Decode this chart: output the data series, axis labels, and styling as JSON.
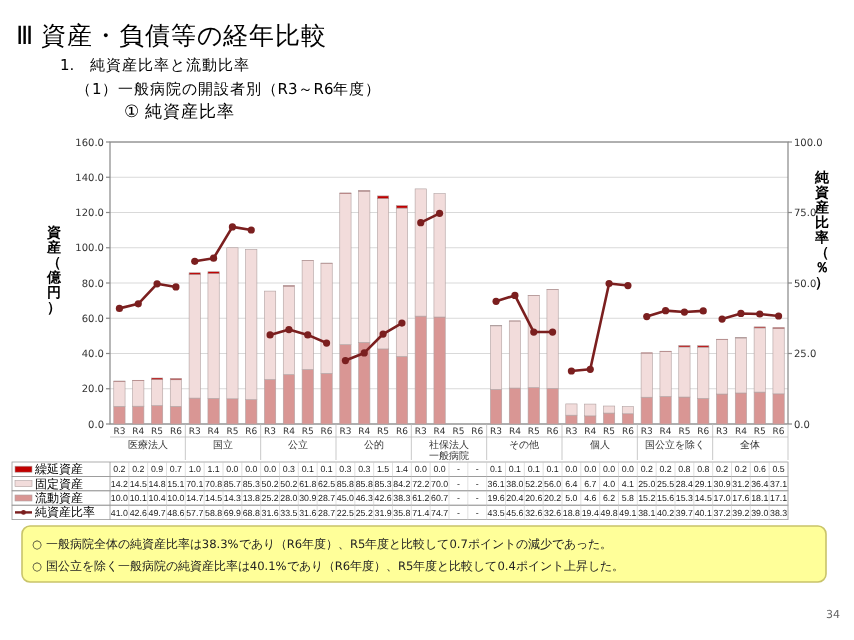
{
  "chart_data": {
    "type": "bar",
    "title": "Ⅲ 資産・負債等の経年比較",
    "subtitle": "1.　純資産比率と流動比率",
    "ylabel": "資産（億円）",
    "y2label": "純資産比率（％）",
    "annotations": [
      "（1）一般病院の開設者別（R3～R6年度）",
      "① 純資産比率",
      "医療法人",
      "国立",
      "公立",
      "公的",
      "社保法人",
      "その他",
      "個人",
      "国公立を除く",
      "全体",
      "一般病院",
      "○ 一般病院全体の純資産比率は38.3%であり（R6年度）、R5年度と比較して0.7ポイントの減少であった。",
      "○ 国公立を除く一般病院の純資産比率は40.1%であり（R6年度）、R5年度と比較して0.4ポイント上昇した。",
      "34"
    ],
    "categories": [
      "R3",
      "R4",
      "R5",
      "R6",
      "R3",
      "R4",
      "R5",
      "R6",
      "R3",
      "R4",
      "R5",
      "R6",
      "R3",
      "R4",
      "R5",
      "R6",
      "R3",
      "R4",
      "R5",
      "R6",
      "R3",
      "R4",
      "R5",
      "R6",
      "R3",
      "R4",
      "R5",
      "R6",
      "R3",
      "R4",
      "R5",
      "R6",
      "R3",
      "R4",
      "R5",
      "R6"
    ],
    "stacked": true,
    "grid": "y",
    "legend": "bottom left",
    "marker": "circle",
    "ylim": [
      0,
      160
    ],
    "yticks": [
      {
        "value": 0,
        "label": "0.0"
      },
      {
        "value": 20,
        "label": "20.0"
      },
      {
        "value": 40,
        "label": "40.0"
      },
      {
        "value": 60,
        "label": "60.0"
      },
      {
        "value": 80,
        "label": "80.0"
      },
      {
        "value": 100,
        "label": "100.0"
      },
      {
        "value": 120,
        "label": "120.0"
      },
      {
        "value": 140,
        "label": "140.0"
      },
      {
        "value": 160,
        "label": "160.0"
      }
    ],
    "y2lim": [
      0,
      100
    ],
    "y2ticks": [
      {
        "value": 0,
        "label": "0.0"
      },
      {
        "value": 25,
        "label": "25.0"
      },
      {
        "value": 50,
        "label": "50.0"
      },
      {
        "value": 75,
        "label": "75.0"
      },
      {
        "value": 100,
        "label": "100.0"
      }
    ],
    "series": [
      {
        "name": "流動資産",
        "color": "#d99694",
        "values": [
          10.0,
          10.1,
          10.4,
          10.0,
          14.7,
          14.5,
          14.3,
          13.8,
          25.2,
          28.0,
          30.9,
          28.7,
          45.0,
          46.3,
          42.6,
          38.3,
          61.2,
          60.7,
          null,
          null,
          19.6,
          20.4,
          20.6,
          20.2,
          5.0,
          4.6,
          6.2,
          5.8,
          15.2,
          15.6,
          15.3,
          14.5,
          17.0,
          17.6,
          18.1,
          17.1
        ],
        "value_labels": [
          "10.0",
          "10.1",
          "10.4",
          "10.0",
          "14.7",
          "14.5",
          "14.3",
          "13.8",
          "25.2",
          "28.0",
          "30.9",
          "28.7",
          "45.0",
          "46.3",
          "42.6",
          "38.3",
          "61.2",
          "60.7",
          "-",
          "-",
          "19.6",
          "20.4",
          "20.6",
          "20.2",
          "5.0",
          "4.6",
          "6.2",
          "5.8",
          "15.2",
          "15.6",
          "15.3",
          "14.5",
          "17.0",
          "17.6",
          "18.1",
          "17.1"
        ]
      },
      {
        "name": "固定資産",
        "color": "#f2dcdb",
        "values": [
          14.2,
          14.5,
          14.8,
          15.1,
          70.1,
          70.8,
          85.7,
          85.3,
          50.2,
          50.2,
          61.8,
          62.5,
          85.8,
          85.8,
          85.3,
          84.2,
          72.2,
          70.0,
          null,
          null,
          36.1,
          38.0,
          52.2,
          56.0,
          6.4,
          6.7,
          4.0,
          4.1,
          25.0,
          25.5,
          28.4,
          29.1,
          30.9,
          31.2,
          36.4,
          37.1
        ],
        "value_labels": [
          "14.2",
          "14.5",
          "14.8",
          "15.1",
          "70.1",
          "70.8",
          "85.7",
          "85.3",
          "50.2",
          "50.2",
          "61.8",
          "62.5",
          "85.8",
          "85.8",
          "85.3",
          "84.2",
          "72.2",
          "70.0",
          "-",
          "-",
          "36.1",
          "38.0",
          "52.2",
          "56.0",
          "6.4",
          "6.7",
          "4.0",
          "4.1",
          "25.0",
          "25.5",
          "28.4",
          "29.1",
          "30.9",
          "31.2",
          "36.4",
          "37.1"
        ]
      },
      {
        "name": "繰延資産",
        "color": "#c00000",
        "values": [
          0.2,
          0.2,
          0.9,
          0.7,
          1.0,
          1.1,
          0.0,
          0.0,
          0.0,
          0.3,
          0.1,
          0.1,
          0.3,
          0.3,
          1.5,
          1.4,
          0.0,
          0.0,
          null,
          null,
          0.1,
          0.1,
          0.1,
          0.1,
          0.0,
          0.0,
          0.0,
          0.0,
          0.2,
          0.2,
          0.8,
          0.8,
          0.2,
          0.2,
          0.6,
          0.5
        ],
        "value_labels": [
          "0.2",
          "0.2",
          "0.9",
          "0.7",
          "1.0",
          "1.1",
          "0.0",
          "0.0",
          "0.0",
          "0.3",
          "0.1",
          "0.1",
          "0.3",
          "0.3",
          "1.5",
          "1.4",
          "0.0",
          "0.0",
          "-",
          "-",
          "0.1",
          "0.1",
          "0.1",
          "0.1",
          "0.0",
          "0.0",
          "0.0",
          "0.0",
          "0.2",
          "0.2",
          "0.8",
          "0.8",
          "0.2",
          "0.2",
          "0.6",
          "0.5"
        ]
      },
      {
        "name": "純資産比率",
        "type": "line",
        "axis": "y2",
        "color": "#7b1f1f",
        "values": [
          41.0,
          42.6,
          49.7,
          48.6,
          57.7,
          58.8,
          69.9,
          68.8,
          31.6,
          33.5,
          31.6,
          28.7,
          22.5,
          25.2,
          31.9,
          35.8,
          71.4,
          74.7,
          null,
          null,
          43.5,
          45.6,
          32.6,
          32.6,
          18.8,
          19.4,
          49.8,
          49.1,
          38.1,
          40.2,
          39.7,
          40.1,
          37.2,
          39.2,
          39.0,
          38.3
        ],
        "value_labels": [
          "41.0",
          "42.6",
          "49.7",
          "48.6",
          "57.7",
          "58.8",
          "69.9",
          "68.8",
          "31.6",
          "33.5",
          "31.6",
          "28.7",
          "22.5",
          "25.2",
          "31.9",
          "35.8",
          "71.4",
          "74.7",
          "-",
          "-",
          "43.5",
          "45.6",
          "32.6",
          "32.6",
          "18.8",
          "19.4",
          "49.8",
          "49.1",
          "38.1",
          "40.2",
          "39.7",
          "40.1",
          "37.2",
          "39.2",
          "39.0",
          "38.3"
        ]
      }
    ]
  }
}
